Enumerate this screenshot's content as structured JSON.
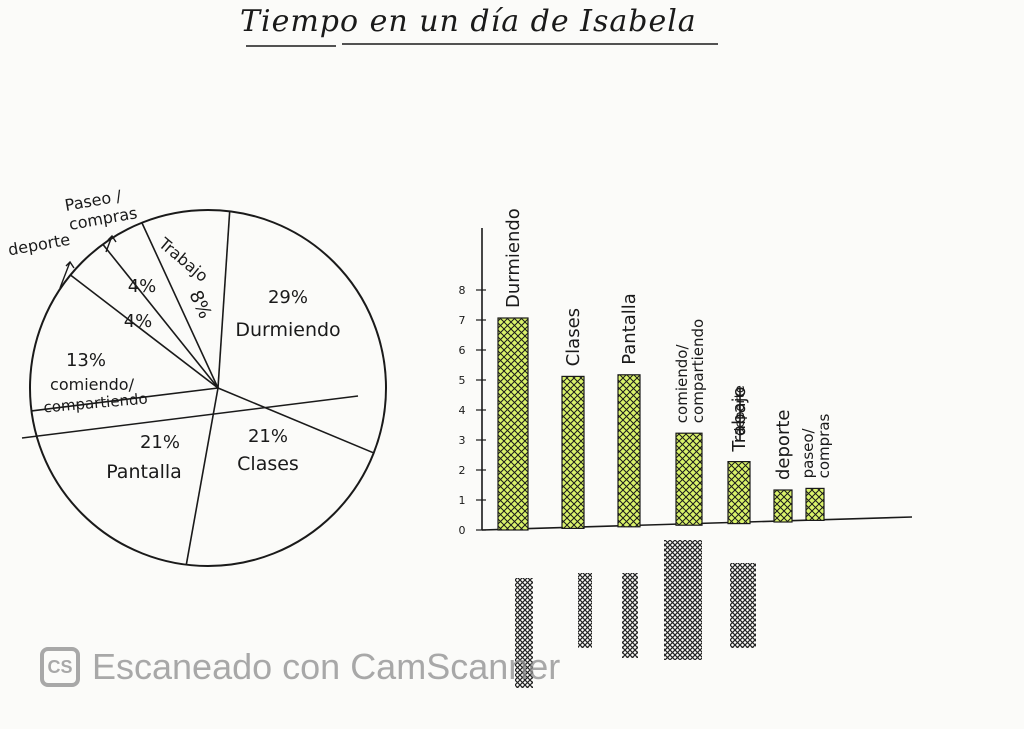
{
  "title": "Tiempo en un día de Isabela",
  "watermark": {
    "logo": "CS",
    "text": "Escaneado con CamScanner"
  },
  "colors": {
    "bar_fill": "#d9f26a",
    "ink": "#1a1a1a"
  },
  "chart_data": [
    {
      "type": "pie",
      "slices": [
        {
          "label": "Durmiendo",
          "percent_text": "29%",
          "value": 29
        },
        {
          "label": "Clases",
          "percent_text": "21%",
          "value": 21
        },
        {
          "label": "Pantalla",
          "percent_text": "21%",
          "value": 21
        },
        {
          "label": "comiendo/ compartiendo",
          "percent_text": "13%",
          "value": 13
        },
        {
          "label": "deporte",
          "percent_text": "4%",
          "value": 4
        },
        {
          "label": "Paseo / compras",
          "percent_text": "4%",
          "value": 4
        },
        {
          "label": "Trabajo",
          "percent_text": "8%",
          "value": 8
        }
      ]
    },
    {
      "type": "bar",
      "categories": [
        "Durmiendo",
        "Clases",
        "Pantalla",
        "comiendo/ compartiendo",
        "Trabajo",
        "deporte",
        "paseo/ compras"
      ],
      "values": [
        7,
        5,
        5,
        3,
        2,
        1,
        1
      ],
      "ylim": [
        0,
        8
      ],
      "yticks": [
        0,
        1,
        2,
        3,
        4,
        5,
        6,
        7,
        8
      ],
      "strikethrough_text": "deporte",
      "fill": "crosshatch"
    }
  ]
}
